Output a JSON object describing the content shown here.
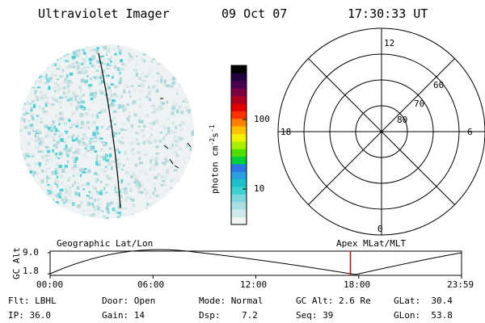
{
  "header": {
    "instrument": "Ultraviolet Imager",
    "date": "09 Oct 07",
    "time": "17:30:33 UT"
  },
  "colorbar": {
    "unit_label": "photon cm",
    "unit_sup1": "-2",
    "unit_s": "s",
    "unit_sup2": "-1",
    "tick_labels": [
      "100",
      "10"
    ],
    "colors": [
      "#f0f4f4",
      "#cfe9ea",
      "#a8dfe2",
      "#7fd6dc",
      "#3fd0d2",
      "#1bc0c8",
      "#2aa0e0",
      "#2b77e6",
      "#00d03a",
      "#4fe000",
      "#a8f000",
      "#f0f000",
      "#ffc000",
      "#ff8000",
      "#ff3000",
      "#e00000",
      "#b00020",
      "#7a0040",
      "#480050",
      "#240040",
      "#000000"
    ]
  },
  "polar": {
    "mlt_labels": {
      "top": "12",
      "left": "18",
      "right": "6",
      "bottom": "0"
    },
    "lat_labels": [
      "60",
      "70",
      "80"
    ]
  },
  "timeline": {
    "left_label": "Geographic Lat/Lon",
    "right_label": "Apex MLat/MLT",
    "y_axis_label": "GC Alt",
    "y_top": "9.0",
    "y_bottom": "1.8",
    "x_ticks": [
      "00:00",
      "06:00",
      "12:00",
      "18:00",
      "23:59"
    ],
    "current_time_fraction": 0.73,
    "accent_color": "#e00000"
  },
  "info": {
    "flt_label": "Flt:",
    "flt_value": "LBHL",
    "ip_label": "IP:",
    "ip_value": "36.0",
    "door_label": "Door:",
    "door_value": "Open",
    "gain_label": "Gain:",
    "gain_value": "14",
    "mode_label": "Mode:",
    "mode_value": "Normal",
    "dsp_label": "Dsp:",
    "dsp_value": "7.2",
    "gcalt_label": "GC Alt:",
    "gcalt_value": "2.6 Re",
    "seq_label": "Seq:",
    "seq_value": "39",
    "glat_label": "GLat:",
    "glat_value": "30.4",
    "glon_label": "GLon:",
    "glon_value": "53.8"
  }
}
